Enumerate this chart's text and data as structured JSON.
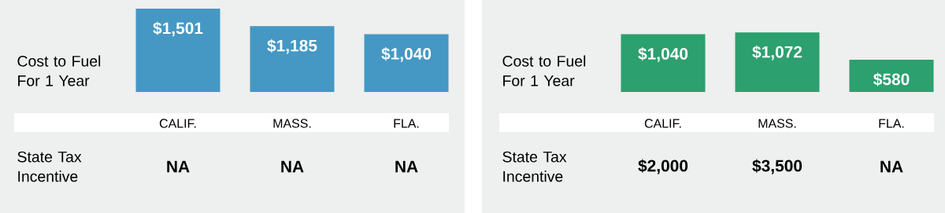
{
  "chart_data": [
    {
      "type": "bar",
      "ylabel": "Cost to Fuel For 1 Year",
      "categories": [
        "CALIF.",
        "MASS.",
        "FLA."
      ],
      "values": [
        1501,
        1185,
        1040
      ],
      "value_labels": [
        "$1,501",
        "$1,185",
        "$1,040"
      ],
      "color": "#4598c4",
      "annotations": [
        "State Tax Incentive",
        "NA",
        "NA",
        "NA"
      ]
    },
    {
      "type": "bar",
      "ylabel": "Cost to Fuel For 1 Year",
      "categories": [
        "CALIF.",
        "MASS.",
        "FLA."
      ],
      "values": [
        1040,
        1072,
        580
      ],
      "value_labels": [
        "$1,040",
        "$1,072",
        "$580"
      ],
      "color": "#2ca06f",
      "annotations": [
        "State Tax Incentive",
        "$2,000",
        "$3,500",
        "NA"
      ]
    }
  ]
}
